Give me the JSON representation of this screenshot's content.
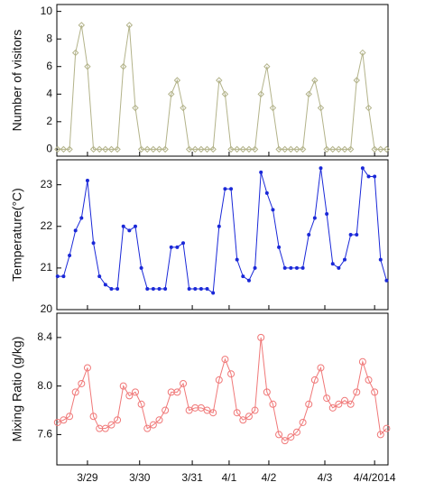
{
  "chart_data": [
    {
      "type": "line",
      "ylabel": "Number of visitors",
      "x": [
        0.375,
        0.5,
        0.625,
        0.75,
        0.875,
        1.0,
        1.125,
        1.25,
        1.375,
        1.5,
        1.625,
        1.75,
        1.875,
        2.0,
        2.125,
        2.25,
        2.375,
        2.5,
        2.625,
        2.75,
        2.875,
        3.0,
        3.125,
        3.25,
        3.375,
        3.5,
        3.625,
        3.75,
        3.875,
        4.0,
        4.125,
        4.25,
        4.375,
        4.5,
        4.625,
        4.75,
        4.875,
        5.0,
        5.125,
        5.25,
        5.375,
        5.5,
        5.625,
        5.75,
        5.875,
        6.0,
        6.125,
        6.25,
        6.375,
        6.5,
        6.625,
        6.75,
        6.875,
        7.0,
        7.125,
        7.25
      ],
      "series": [
        {
          "color": "#b3b38a",
          "values": [
            0,
            0,
            0,
            7,
            9,
            6,
            0,
            0,
            0,
            0,
            0,
            6,
            9,
            3,
            0,
            0,
            0,
            0,
            0,
            4,
            5,
            3,
            0,
            0,
            0,
            0,
            0,
            5,
            4,
            0,
            0,
            0,
            0,
            0,
            4,
            6,
            3,
            0,
            0,
            0,
            0,
            0,
            4,
            5,
            3,
            0,
            0,
            0,
            0,
            0,
            5,
            7,
            3,
            0,
            0,
            0
          ]
        }
      ],
      "xlim": [
        0.36,
        7.28
      ],
      "ylim": [
        -0.5,
        10.5
      ],
      "yticks": [
        0,
        2,
        4,
        6,
        8,
        10
      ]
    },
    {
      "type": "line",
      "ylabel": "Temperature(°C)",
      "x": [
        0.375,
        0.5,
        0.625,
        0.75,
        0.875,
        1.0,
        1.125,
        1.25,
        1.375,
        1.5,
        1.625,
        1.75,
        1.875,
        2.0,
        2.125,
        2.25,
        2.375,
        2.5,
        2.625,
        2.75,
        2.875,
        3.0,
        3.125,
        3.25,
        3.375,
        3.5,
        3.625,
        3.75,
        3.875,
        4.0,
        4.125,
        4.25,
        4.375,
        4.5,
        4.625,
        4.75,
        4.875,
        5.0,
        5.125,
        5.25,
        5.375,
        5.5,
        5.625,
        5.75,
        5.875,
        6.0,
        6.125,
        6.25,
        6.375,
        6.5,
        6.625,
        6.75,
        6.875,
        7.0,
        7.125,
        7.25
      ],
      "series": [
        {
          "color": "#1a28d8",
          "values": [
            20.8,
            20.8,
            21.3,
            21.9,
            22.2,
            23.1,
            21.6,
            20.8,
            20.6,
            20.5,
            20.5,
            22.0,
            21.9,
            22.0,
            21.0,
            20.5,
            20.5,
            20.5,
            20.5,
            21.5,
            21.5,
            21.6,
            20.5,
            20.5,
            20.5,
            20.5,
            20.4,
            22.0,
            22.9,
            22.9,
            21.2,
            20.8,
            20.7,
            21.0,
            23.3,
            22.8,
            22.4,
            21.5,
            21.0,
            21.0,
            21.0,
            21.0,
            21.8,
            22.2,
            23.4,
            22.3,
            21.1,
            21.0,
            21.2,
            21.8,
            21.8,
            23.4,
            23.2,
            23.2,
            21.2,
            20.7
          ]
        }
      ],
      "xlim": [
        0.36,
        7.28
      ],
      "ylim": [
        20,
        23.6
      ],
      "yticks": [
        20,
        21,
        22,
        23
      ]
    },
    {
      "type": "line",
      "ylabel": "Mixing Ratio (g/kg)",
      "x": [
        0.375,
        0.5,
        0.625,
        0.75,
        0.875,
        1.0,
        1.125,
        1.25,
        1.375,
        1.5,
        1.625,
        1.75,
        1.875,
        2.0,
        2.125,
        2.25,
        2.375,
        2.5,
        2.625,
        2.75,
        2.875,
        3.0,
        3.125,
        3.25,
        3.375,
        3.5,
        3.625,
        3.75,
        3.875,
        4.0,
        4.125,
        4.25,
        4.375,
        4.5,
        4.625,
        4.75,
        4.875,
        5.0,
        5.125,
        5.25,
        5.375,
        5.5,
        5.625,
        5.75,
        5.875,
        6.0,
        6.125,
        6.25,
        6.375,
        6.5,
        6.625,
        6.75,
        6.875,
        7.0,
        7.125,
        7.25
      ],
      "series": [
        {
          "color": "#f07878",
          "values": [
            7.7,
            7.72,
            7.75,
            7.95,
            8.02,
            8.15,
            7.75,
            7.65,
            7.65,
            7.68,
            7.72,
            8.0,
            7.92,
            7.95,
            7.85,
            7.65,
            7.68,
            7.72,
            7.8,
            7.95,
            7.95,
            8.02,
            7.8,
            7.82,
            7.82,
            7.8,
            7.78,
            8.05,
            8.22,
            8.1,
            7.78,
            7.72,
            7.75,
            7.8,
            8.4,
            7.95,
            7.85,
            7.6,
            7.55,
            7.58,
            7.62,
            7.7,
            7.85,
            8.05,
            8.15,
            7.9,
            7.82,
            7.85,
            7.88,
            7.85,
            7.95,
            8.2,
            8.05,
            7.95,
            7.6,
            7.65
          ]
        }
      ],
      "xlim": [
        0.36,
        7.28
      ],
      "ylim": [
        7.35,
        8.6
      ],
      "yticks": [
        7.6,
        {
          "value": 8,
          "label": "8.0"
        },
        8.4
      ],
      "xticks": [
        {
          "value": 1,
          "label": "3/29"
        },
        {
          "value": 2.09,
          "label": "3/30"
        },
        {
          "value": 3.19,
          "label": "3/31"
        },
        {
          "value": 3.96,
          "label": "4/1"
        },
        {
          "value": 4.79,
          "label": "4/2"
        },
        {
          "value": 5.96,
          "label": "4/3"
        },
        {
          "value": 7.0,
          "label": "4/4/2014"
        }
      ]
    }
  ]
}
